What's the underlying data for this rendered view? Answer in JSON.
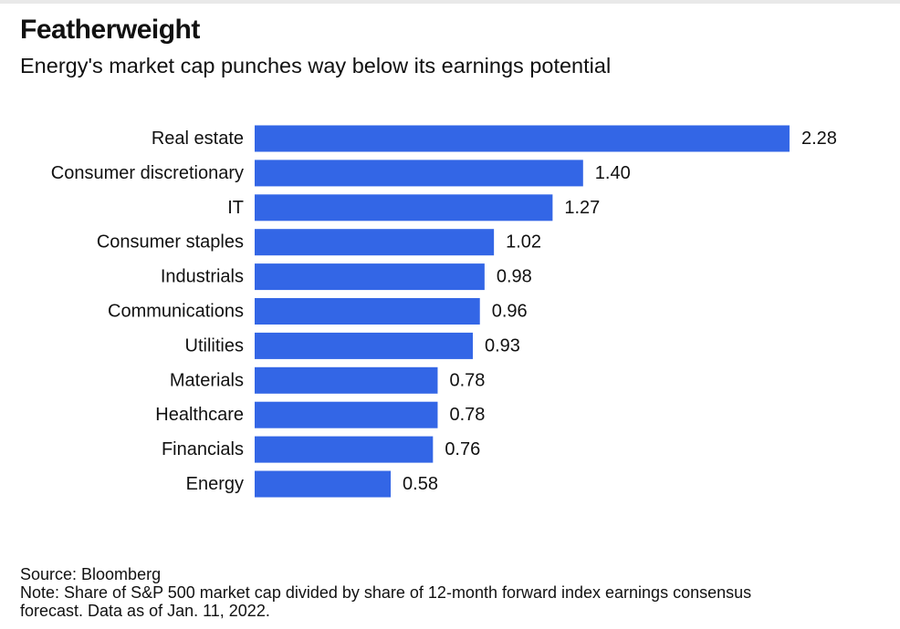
{
  "title": "Featherweight",
  "subtitle": "Energy's market cap punches way below its earnings potential",
  "chart_data": {
    "type": "bar",
    "orientation": "horizontal",
    "categories": [
      "Real estate",
      "Consumer discretionary",
      "IT",
      "Consumer staples",
      "Industrials",
      "Communications",
      "Utilities",
      "Materials",
      "Healthcare",
      "Financials",
      "Energy"
    ],
    "values": [
      2.28,
      1.4,
      1.27,
      1.02,
      0.98,
      0.96,
      0.93,
      0.78,
      0.78,
      0.76,
      0.58
    ],
    "value_labels": [
      "2.28",
      "1.40",
      "1.27",
      "1.02",
      "0.98",
      "0.96",
      "0.93",
      "0.78",
      "0.78",
      "0.76",
      "0.58"
    ],
    "bar_color": "#3366e6",
    "grid": false,
    "legend": "none"
  },
  "footer": {
    "source": "Source: Bloomberg",
    "note_line1": "Note: Share of S&P 500 market cap divided by share of 12-month forward index earnings consensus",
    "note_line2": "forecast. Data as of Jan. 11, 2022."
  }
}
